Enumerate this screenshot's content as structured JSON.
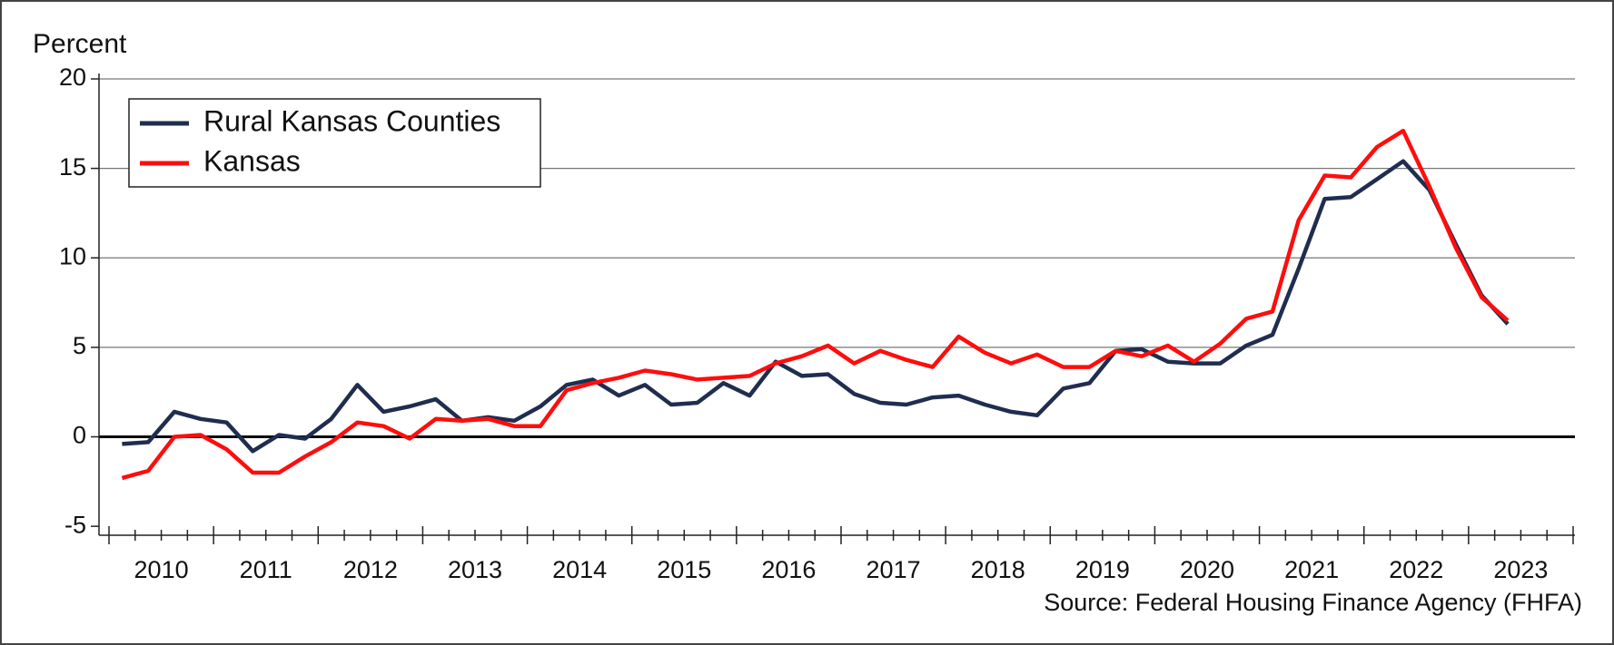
{
  "chart_data": {
    "type": "line",
    "y_label": "Percent",
    "source": "Source: Federal Housing Finance Agency (FHFA)",
    "categories": [
      null,
      "2010",
      null,
      null,
      null,
      "2011",
      null,
      null,
      null,
      "2012",
      null,
      null,
      null,
      "2013",
      null,
      null,
      null,
      "2014",
      null,
      null,
      null,
      "2015",
      null,
      null,
      null,
      "2016",
      null,
      null,
      null,
      "2017",
      null,
      null,
      null,
      "2018",
      null,
      null,
      null,
      "2019",
      null,
      null,
      null,
      "2020",
      null,
      null,
      null,
      "2021",
      null,
      null,
      null,
      "2022",
      null,
      null,
      null,
      "2023"
    ],
    "series": [
      {
        "name": "Rural Kansas Counties",
        "color": "#1f2d4f",
        "values": [
          -0.4,
          -0.3,
          1.4,
          1.0,
          0.8,
          -0.8,
          0.1,
          -0.1,
          1.0,
          2.9,
          1.4,
          1.7,
          2.1,
          0.9,
          1.1,
          0.9,
          1.7,
          2.9,
          3.2,
          2.3,
          2.9,
          1.8,
          1.9,
          3.0,
          2.3,
          4.2,
          3.4,
          3.5,
          2.4,
          1.9,
          1.8,
          2.2,
          2.3,
          1.8,
          1.4,
          1.2,
          2.7,
          3.0,
          4.8,
          4.9,
          4.2,
          4.1,
          4.1,
          5.1,
          5.7,
          9.4,
          13.3,
          13.4,
          14.4,
          15.4,
          13.8,
          10.8,
          7.9,
          6.3
        ]
      },
      {
        "name": "Kansas",
        "color": "#ff0d0d",
        "values": [
          -2.3,
          -1.9,
          0.0,
          0.1,
          -0.7,
          -2.0,
          -2.0,
          -1.1,
          -0.3,
          0.8,
          0.6,
          -0.1,
          1.0,
          0.9,
          1.0,
          0.6,
          0.6,
          2.6,
          3.0,
          3.3,
          3.7,
          3.5,
          3.2,
          3.3,
          3.4,
          4.1,
          4.5,
          5.1,
          4.1,
          4.8,
          4.3,
          3.9,
          5.6,
          4.7,
          4.1,
          4.6,
          3.9,
          3.9,
          4.8,
          4.5,
          5.1,
          4.2,
          5.2,
          6.6,
          7.0,
          12.1,
          14.6,
          14.5,
          16.2,
          17.1,
          14.0,
          10.6,
          7.8,
          6.5
        ]
      }
    ],
    "ylim": [
      -5.5,
      20
    ],
    "yticks": [
      -5,
      0,
      5,
      10,
      15,
      20
    ],
    "grid": true,
    "legend": "upper left"
  }
}
